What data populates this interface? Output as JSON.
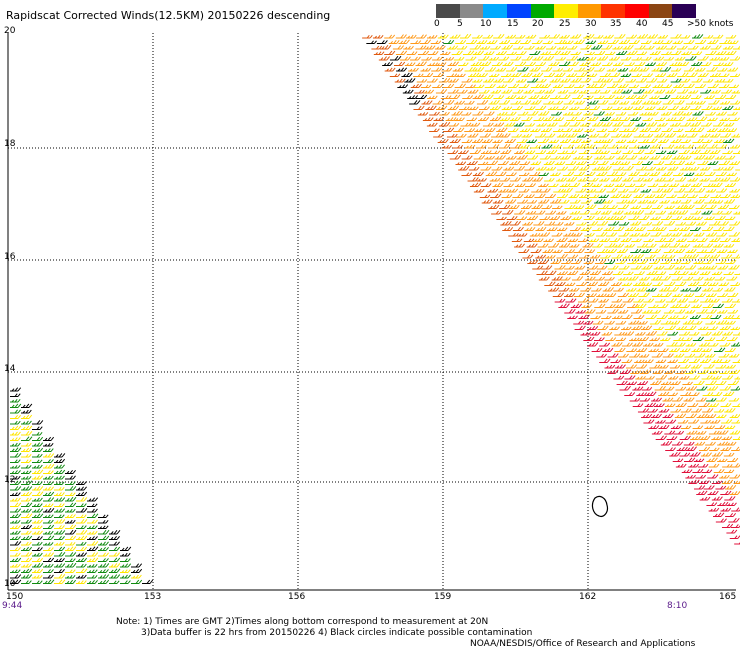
{
  "title": "Rapidscat Corrected Winds(12.5KM) 20150226 descending",
  "legend": {
    "ticks": [
      "0",
      "5",
      "10",
      "15",
      "20",
      "25",
      "30",
      "35",
      "40",
      "45",
      ">50 knots"
    ],
    "colors": [
      "#4a4a4a",
      "#8a8a8a",
      "#00aaff",
      "#0044ff",
      "#00aa00",
      "#ffee00",
      "#ff9900",
      "#ff3300",
      "#ff0000",
      "#8b4513",
      "#2a0055"
    ]
  },
  "axes": {
    "lat_labels": [
      "20",
      "18",
      "16",
      "14",
      "12",
      "10"
    ],
    "lon_labels": [
      "150",
      "153",
      "156",
      "159",
      "162",
      "165"
    ]
  },
  "time_labels": {
    "left": "9:44",
    "right": "8:10"
  },
  "notes": {
    "line1": "Note:  1) Times are GMT  2)Times along bottom correspond to measurement at 20N",
    "line2": "3)Data buffer is 22 hrs from 20150226  4) Black circles indicate possible contamination",
    "line3": "NOAA/NESDIS/Office of Research and Applications"
  },
  "colors": {
    "wind_yellow": "#ffe600",
    "wind_orange": "#ff9a1a",
    "wind_darkorange": "#e05a10",
    "wind_red": "#e0103a",
    "wind_green": "#108a10",
    "wind_black": "#000000",
    "grid": "#000000"
  }
}
